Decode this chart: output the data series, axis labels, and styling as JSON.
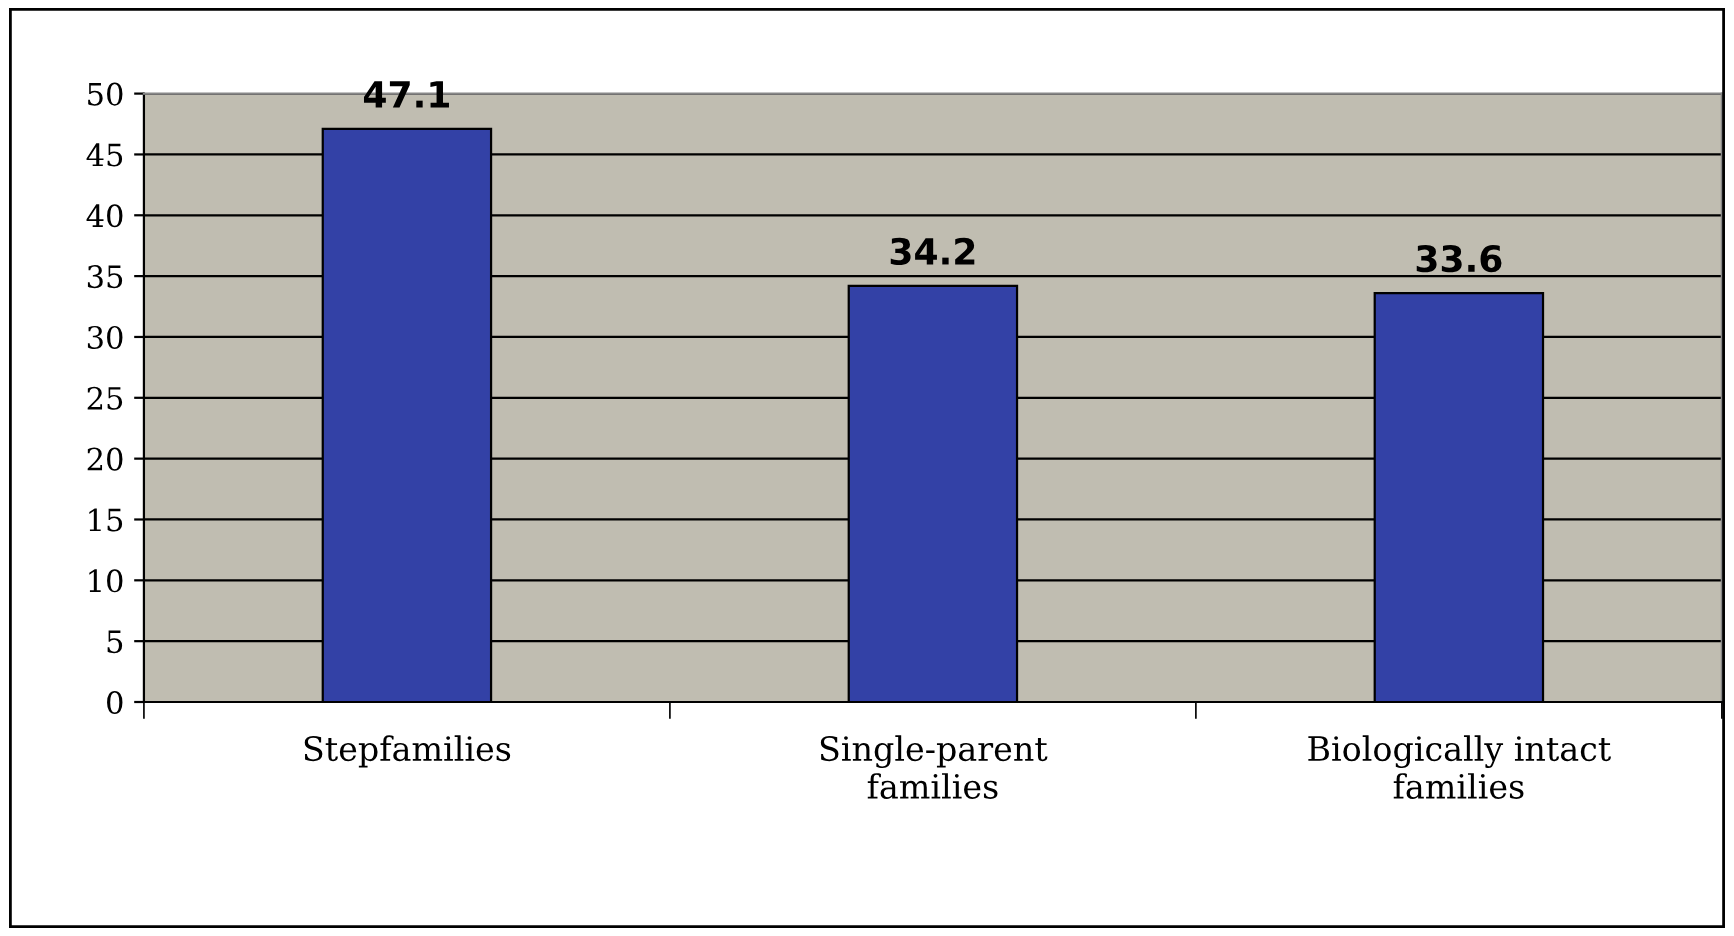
{
  "chart_data": {
    "type": "bar",
    "categories": [
      "Stepfamilies",
      "Single-parent\nfamilies",
      "Biologically intact\nfamilies"
    ],
    "values": [
      47.1,
      34.2,
      33.6
    ],
    "color": "#3341a6",
    "ylim": [
      0,
      50
    ],
    "yticks": [
      0,
      5,
      10,
      15,
      20,
      25,
      30,
      35,
      40,
      45,
      50
    ],
    "grid": "y",
    "data_labels": true,
    "legend": false
  }
}
